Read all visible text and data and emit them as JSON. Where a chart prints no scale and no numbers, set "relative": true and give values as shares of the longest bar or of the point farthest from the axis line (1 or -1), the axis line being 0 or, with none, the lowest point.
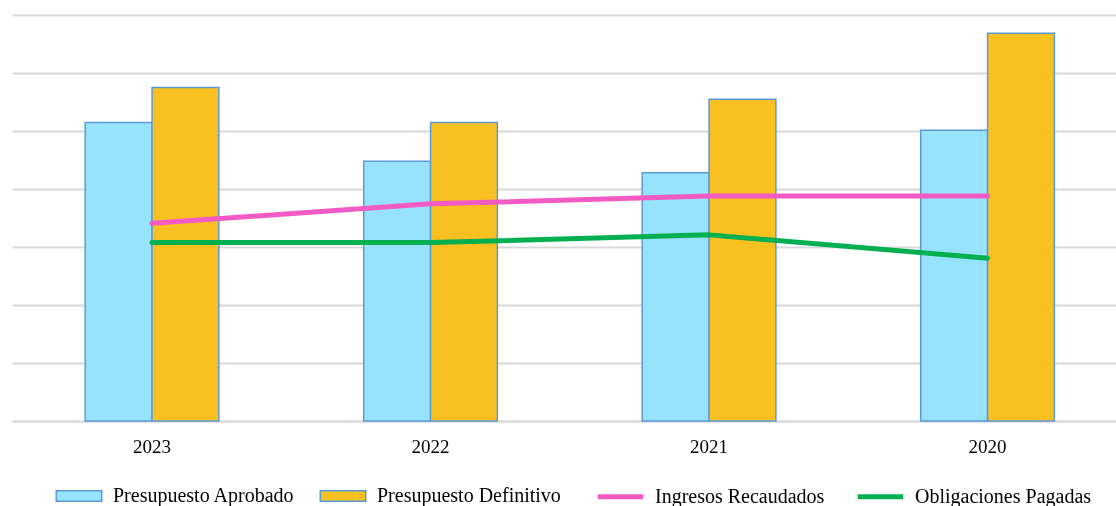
{
  "chart_data": {
    "type": "bar",
    "relative": true,
    "categories": [
      "2023",
      "2022",
      "2021",
      "2020"
    ],
    "series": [
      {
        "name": "Presupuesto Aprobado",
        "color": "#97e3fd",
        "values": [
          0.77,
          0.67,
          0.64,
          0.75
        ]
      },
      {
        "name": "Presupuesto Definitivo",
        "color": "#f9c022",
        "values": [
          0.86,
          0.77,
          0.83,
          1
        ]
      },
      {
        "name": "Ingresos Recaudados",
        "type": "line",
        "color": "#f25ac4",
        "values": [
          0.51,
          0.56,
          0.58,
          0.58
        ]
      },
      {
        "name": "Obligaciones Pagadas",
        "type": "line",
        "color": "#00b050",
        "values": [
          0.46,
          0.46,
          0.48,
          0.42
        ]
      }
    ],
    "grid": "y",
    "legend": "bottom",
    "marker": "none"
  }
}
